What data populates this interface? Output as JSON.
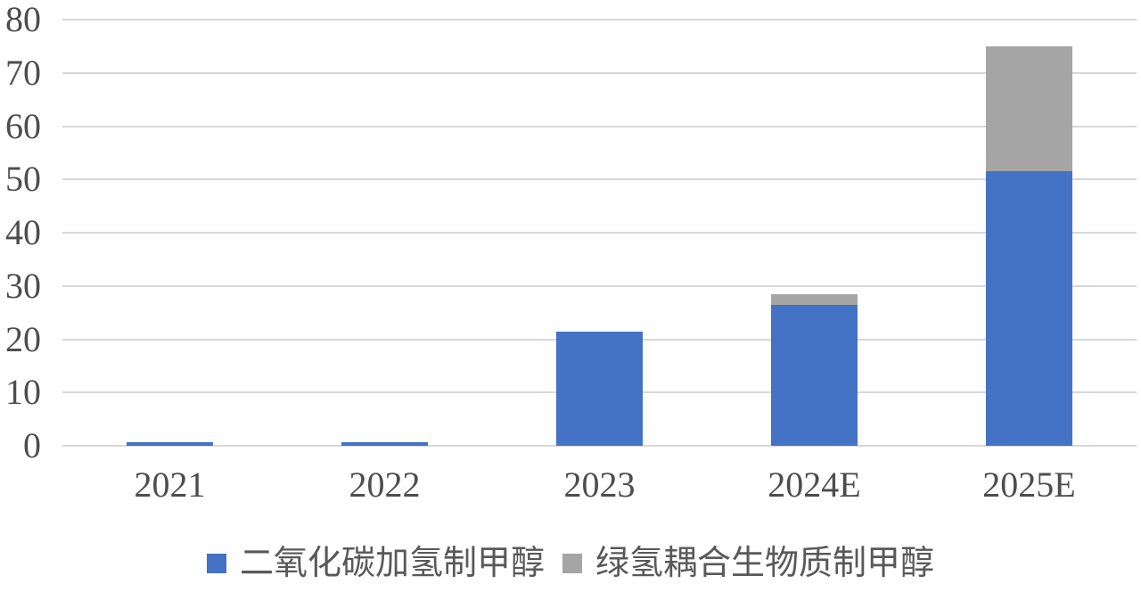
{
  "chart_data": {
    "type": "bar",
    "stacked": true,
    "title": "",
    "xlabel": "",
    "ylabel": "",
    "categories": [
      "2021",
      "2022",
      "2023",
      "2024E",
      "2025E"
    ],
    "series": [
      {
        "name": "二氧化碳加氢制甲醇",
        "color": "#4472c4",
        "values": [
          0.7,
          0.7,
          21.5,
          26.5,
          51.5
        ]
      },
      {
        "name": "绿氢耦合生物质制甲醇",
        "color": "#a5a5a5",
        "values": [
          0,
          0,
          0,
          2,
          23.5
        ]
      }
    ],
    "ylim": [
      0,
      80
    ],
    "yticks": [
      0,
      10,
      20,
      30,
      40,
      50,
      60,
      70,
      80
    ],
    "grid": true,
    "gridline_color": "#d8d8d8",
    "axis_label_color": "#4d4d4d",
    "legend_position": "bottom"
  }
}
